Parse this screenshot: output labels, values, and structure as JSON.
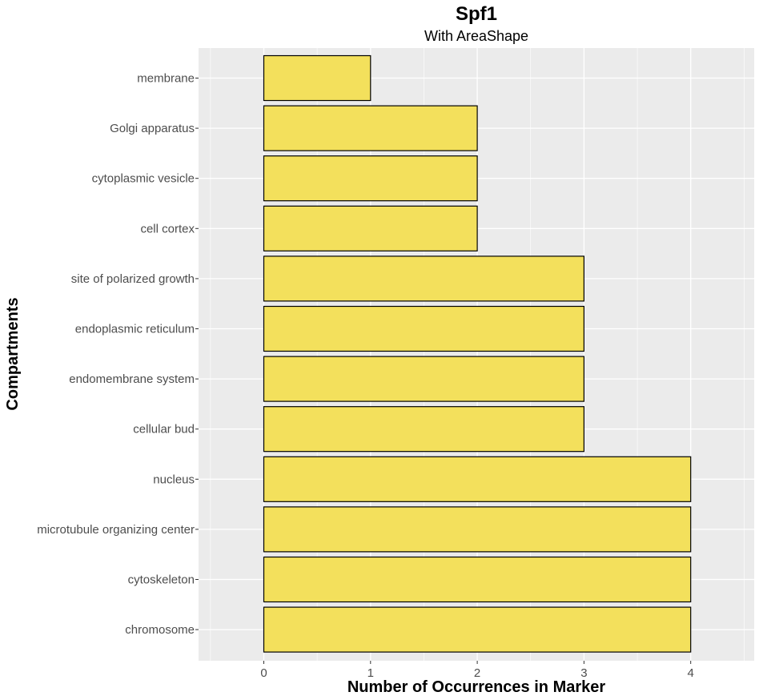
{
  "chart_data": {
    "type": "bar",
    "orientation": "horizontal",
    "title": "Spf1",
    "subtitle": "With AreaShape",
    "xlabel": "Number of Occurrences in Marker",
    "ylabel": "Compartments",
    "categories": [
      "membrane",
      "Golgi apparatus",
      "cytoplasmic vesicle",
      "cell cortex",
      "site of polarized growth",
      "endoplasmic reticulum",
      "endomembrane system",
      "cellular bud",
      "nucleus",
      "microtubule organizing center",
      "cytoskeleton",
      "chromosome"
    ],
    "values": [
      1,
      2,
      2,
      2,
      3,
      3,
      3,
      3,
      4,
      4,
      4,
      4
    ],
    "xlim": [
      -0.5,
      4.5
    ],
    "xticks": [
      "0",
      "1",
      "2",
      "3",
      "4"
    ],
    "grid": true,
    "colors": {
      "bar_fill": "#f3e05c",
      "bar_stroke": "#000000",
      "panel_bg": "#ebebeb",
      "grid": "#ffffff",
      "tick_text": "#4d4d4d"
    }
  }
}
